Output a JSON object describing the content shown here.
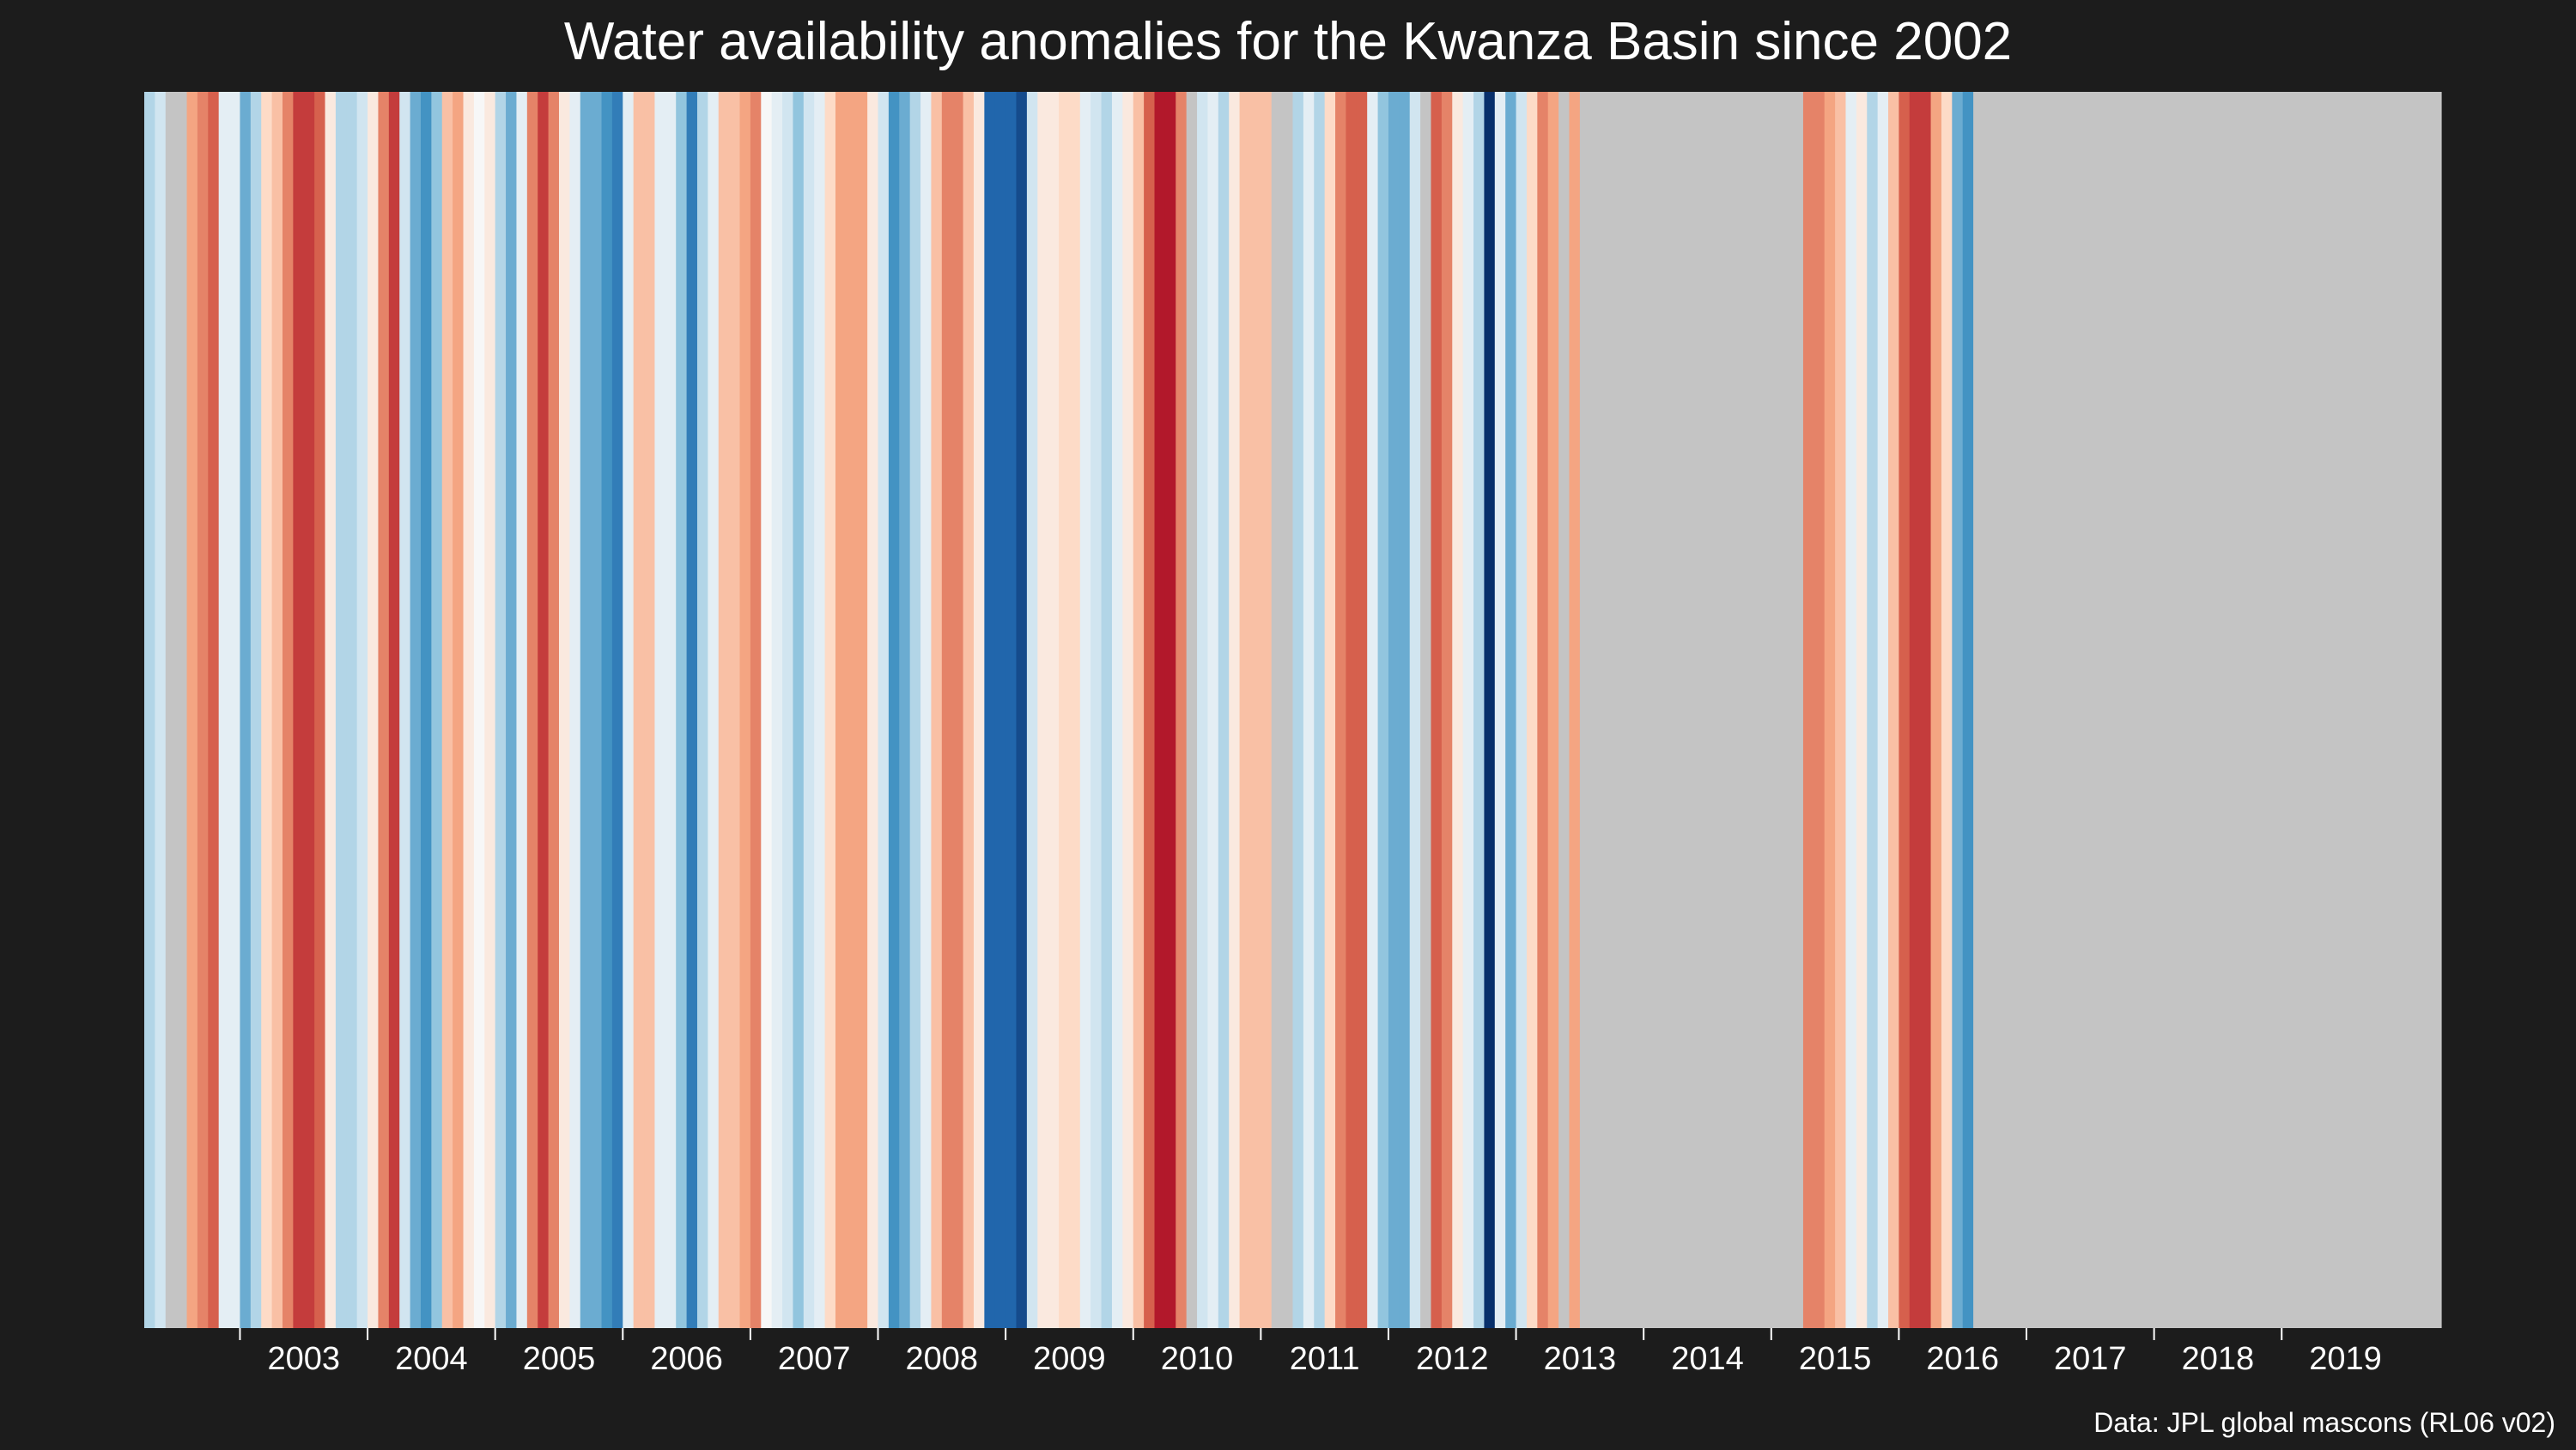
{
  "chart_data": {
    "type": "heatmap",
    "title": "Water availability anomalies for the Kwanza Basin since 2002",
    "caption": "Data: JPL global mascons (RL06 v02)",
    "x_start": 2002.25,
    "x_end": 2020.25,
    "missing_color": "#c4c4c4",
    "color_scale": [
      -5,
      -4,
      -3,
      -2,
      -1,
      0,
      1,
      2,
      3,
      4,
      5
    ],
    "palette": [
      "#08306b",
      "#2166ac",
      "#4393c3",
      "#92c5de",
      "#d1e5f0",
      "#f7f7f7",
      "#fddbc7",
      "#f4a582",
      "#d6604d",
      "#b2182b",
      "#67001f"
    ],
    "x_ticks": [
      2003,
      2004,
      2005,
      2006,
      2007,
      2008,
      2009,
      2010,
      2011,
      2012,
      2013,
      2014,
      2015,
      2016,
      2017,
      2018,
      2019
    ],
    "tick_labels": [
      "2003",
      "2004",
      "2005",
      "2006",
      "2007",
      "2008",
      "2009",
      "2010",
      "2011",
      "2012",
      "2013",
      "2014",
      "2015",
      "2016",
      "2017",
      "2018",
      "2019"
    ],
    "months": 216,
    "values": [
      -1.5,
      -1.0,
      null,
      null,
      2.0,
      2.5,
      3.0,
      -0.5,
      -0.5,
      -2.5,
      -1.5,
      1.0,
      1.5,
      2.5,
      3.5,
      3.5,
      3.0,
      0.5,
      -1.5,
      -1.5,
      -1.0,
      0.5,
      2.5,
      3.5,
      -1.0,
      -2.5,
      -3.0,
      -2.0,
      1.5,
      2.0,
      0.5,
      0.0,
      0.5,
      -1.5,
      -2.5,
      -0.5,
      2.5,
      3.5,
      2.5,
      0.5,
      -0.5,
      -2.5,
      -2.5,
      -3.0,
      -3.5,
      -0.5,
      1.5,
      1.5,
      -0.5,
      -0.5,
      -2.0,
      -3.5,
      -1.5,
      -0.5,
      1.5,
      1.5,
      2.0,
      2.5,
      0.0,
      -0.5,
      -1.0,
      -2.0,
      -1.0,
      -0.5,
      1.0,
      2.0,
      2.0,
      2.0,
      0.5,
      -1.0,
      -3.0,
      -2.5,
      -1.5,
      -0.5,
      1.5,
      2.5,
      2.5,
      1.5,
      0.5,
      -4.0,
      -4.0,
      -4.0,
      -4.5,
      -1.0,
      0.5,
      0.5,
      1.0,
      1.0,
      -0.5,
      -1.0,
      -1.5,
      -0.5,
      0.5,
      1.5,
      3.0,
      4.0,
      4.0,
      2.5,
      null,
      -1.0,
      -0.5,
      -1.5,
      0.5,
      1.5,
      1.5,
      1.5,
      null,
      null,
      -1.5,
      -0.5,
      -1.5,
      1.0,
      2.5,
      3.0,
      3.0,
      -0.5,
      -2.0,
      -2.5,
      -2.5,
      -1.0,
      null,
      3.0,
      2.5,
      0.5,
      -0.5,
      -1.5,
      -5.0,
      -0.5,
      -2.5,
      -1.0,
      1.0,
      2.5,
      2.0,
      null,
      2.0,
      null,
      null,
      null,
      null,
      null,
      null,
      null,
      null,
      null,
      null,
      null,
      null,
      null,
      null,
      null,
      null,
      null,
      null,
      null,
      null,
      null,
      2.5,
      2.5,
      2.0,
      1.5,
      -0.5,
      0.5,
      -1.5,
      -0.5,
      1.5,
      3.0,
      3.5,
      3.5,
      2.0,
      1.0,
      -2.5,
      -3.0,
      null,
      null,
      null,
      null,
      null,
      null,
      null,
      null,
      null,
      null,
      null,
      null,
      null,
      null,
      null,
      null,
      null,
      null,
      null,
      null,
      null,
      null,
      null,
      null,
      null,
      null,
      null,
      null,
      null,
      null,
      null,
      null,
      null,
      null,
      null,
      null,
      null,
      null,
      null,
      null,
      null,
      null,
      null,
      null
    ]
  }
}
